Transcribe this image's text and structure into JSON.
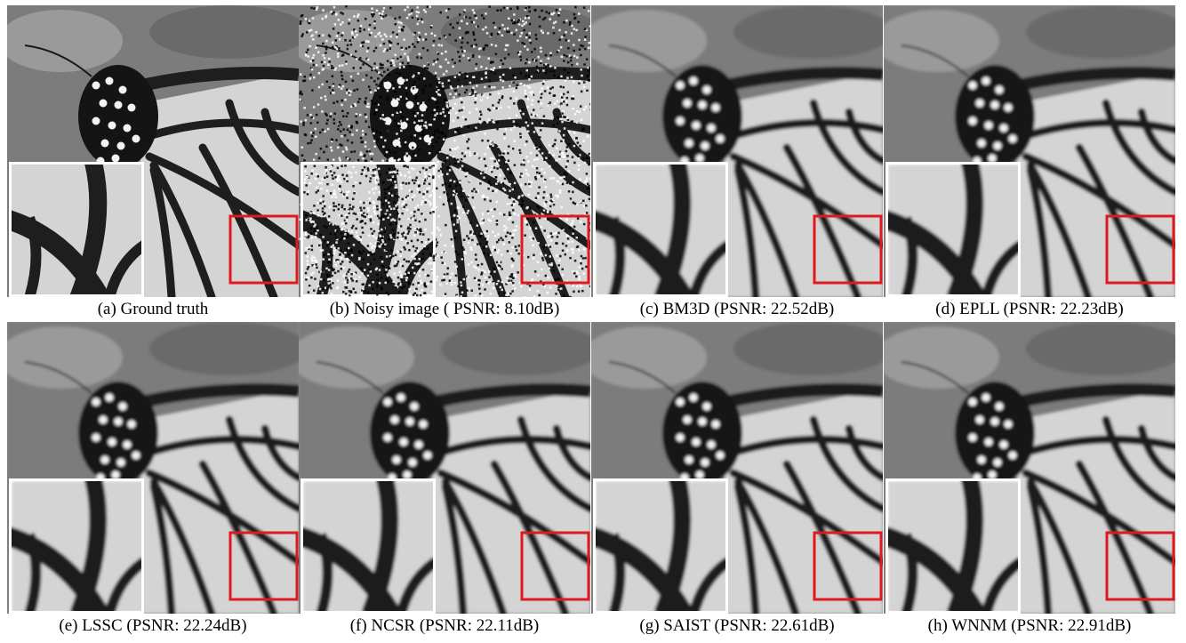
{
  "figure": {
    "panels": [
      {
        "label": "(a)  Ground truth",
        "variant": "clean"
      },
      {
        "label": "(b)  Noisy image ( PSNR: 8.10dB)",
        "variant": "noisy"
      },
      {
        "label": "(c)  BM3D (PSNR: 22.52dB)",
        "variant": "smooth"
      },
      {
        "label": "(d)  EPLL (PSNR: 22.23dB)",
        "variant": "smooth"
      },
      {
        "label": "(e)  LSSC (PSNR: 22.24dB)",
        "variant": "smooth"
      },
      {
        "label": "(f)  NCSR (PSNR: 22.11dB)",
        "variant": "smooth"
      },
      {
        "label": "(g)  SAIST (PSNR: 22.61dB)",
        "variant": "smooth"
      },
      {
        "label": "(h)  WNNM (PSNR: 22.91dB)",
        "variant": "smooth"
      }
    ],
    "colors": {
      "zoom_box": "#e0191e",
      "inset_border": "#ffffff",
      "wing_light": "#d4d4d4",
      "wing_vein": "#1e1e1e",
      "background_gray": "#7c7c7c"
    }
  }
}
